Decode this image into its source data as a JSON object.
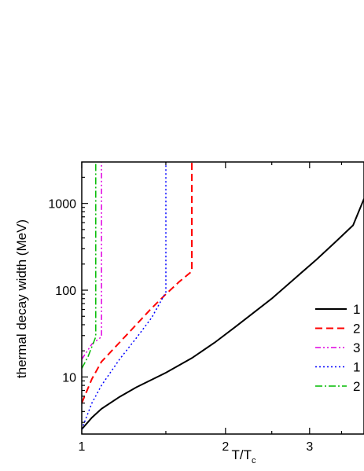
{
  "chart_data": {
    "type": "line",
    "xlabel": "T/T",
    "xlabel_sub": "c",
    "ylabel": "thermal decay width (MeV)",
    "x_scale": "log",
    "y_scale": "log",
    "xlim": [
      1,
      3.9
    ],
    "ylim": [
      2.2,
      3000
    ],
    "x_ticks": [
      {
        "value": 1,
        "label": "1"
      },
      {
        "value": 2,
        "label": "2"
      },
      {
        "value": 3,
        "label": "3"
      }
    ],
    "y_ticks": [
      {
        "value": 10,
        "label": "10"
      },
      {
        "value": 100,
        "label": "100"
      },
      {
        "value": 1000,
        "label": "1000"
      }
    ],
    "legend_position": "right",
    "series": [
      {
        "name": "1",
        "color": "#000000",
        "dash": "solid",
        "width": 2,
        "x": [
          1.0,
          1.05,
          1.1,
          1.2,
          1.3,
          1.5,
          1.7,
          1.9,
          2.1,
          2.3,
          2.5,
          2.8,
          3.1,
          3.4,
          3.7,
          3.9
        ],
        "y": [
          2.5,
          3.4,
          4.3,
          5.9,
          7.6,
          11.2,
          16.5,
          25,
          38,
          56,
          80,
          138,
          225,
          360,
          560,
          1130
        ]
      },
      {
        "name": "2",
        "color": "#ff0000",
        "dash": "9,5",
        "width": 2,
        "x": [
          1.0,
          1.05,
          1.1,
          1.2,
          1.3,
          1.4,
          1.5,
          1.6,
          1.7,
          1.7
        ],
        "y": [
          5.0,
          9.5,
          15,
          25,
          40,
          62,
          90,
          125,
          165,
          3000
        ]
      },
      {
        "name": "3",
        "color": "#e000e0",
        "dash": "7,3,2,3,2,3",
        "width": 1.5,
        "x": [
          1.0,
          1.05,
          1.1,
          1.1
        ],
        "y": [
          16,
          24,
          29,
          3000
        ]
      },
      {
        "name": "1",
        "color": "#0000ff",
        "dash": "2,3",
        "width": 1.5,
        "x": [
          1.0,
          1.05,
          1.1,
          1.2,
          1.3,
          1.4,
          1.5,
          1.5
        ],
        "y": [
          2.5,
          5,
          8,
          16,
          28,
          48,
          95,
          3000
        ]
      },
      {
        "name": "2",
        "color": "#00bb00",
        "dash": "9,3,2,3",
        "width": 1.5,
        "x": [
          1.0,
          1.03,
          1.07,
          1.07
        ],
        "y": [
          12.5,
          17,
          29,
          3000
        ]
      }
    ]
  }
}
